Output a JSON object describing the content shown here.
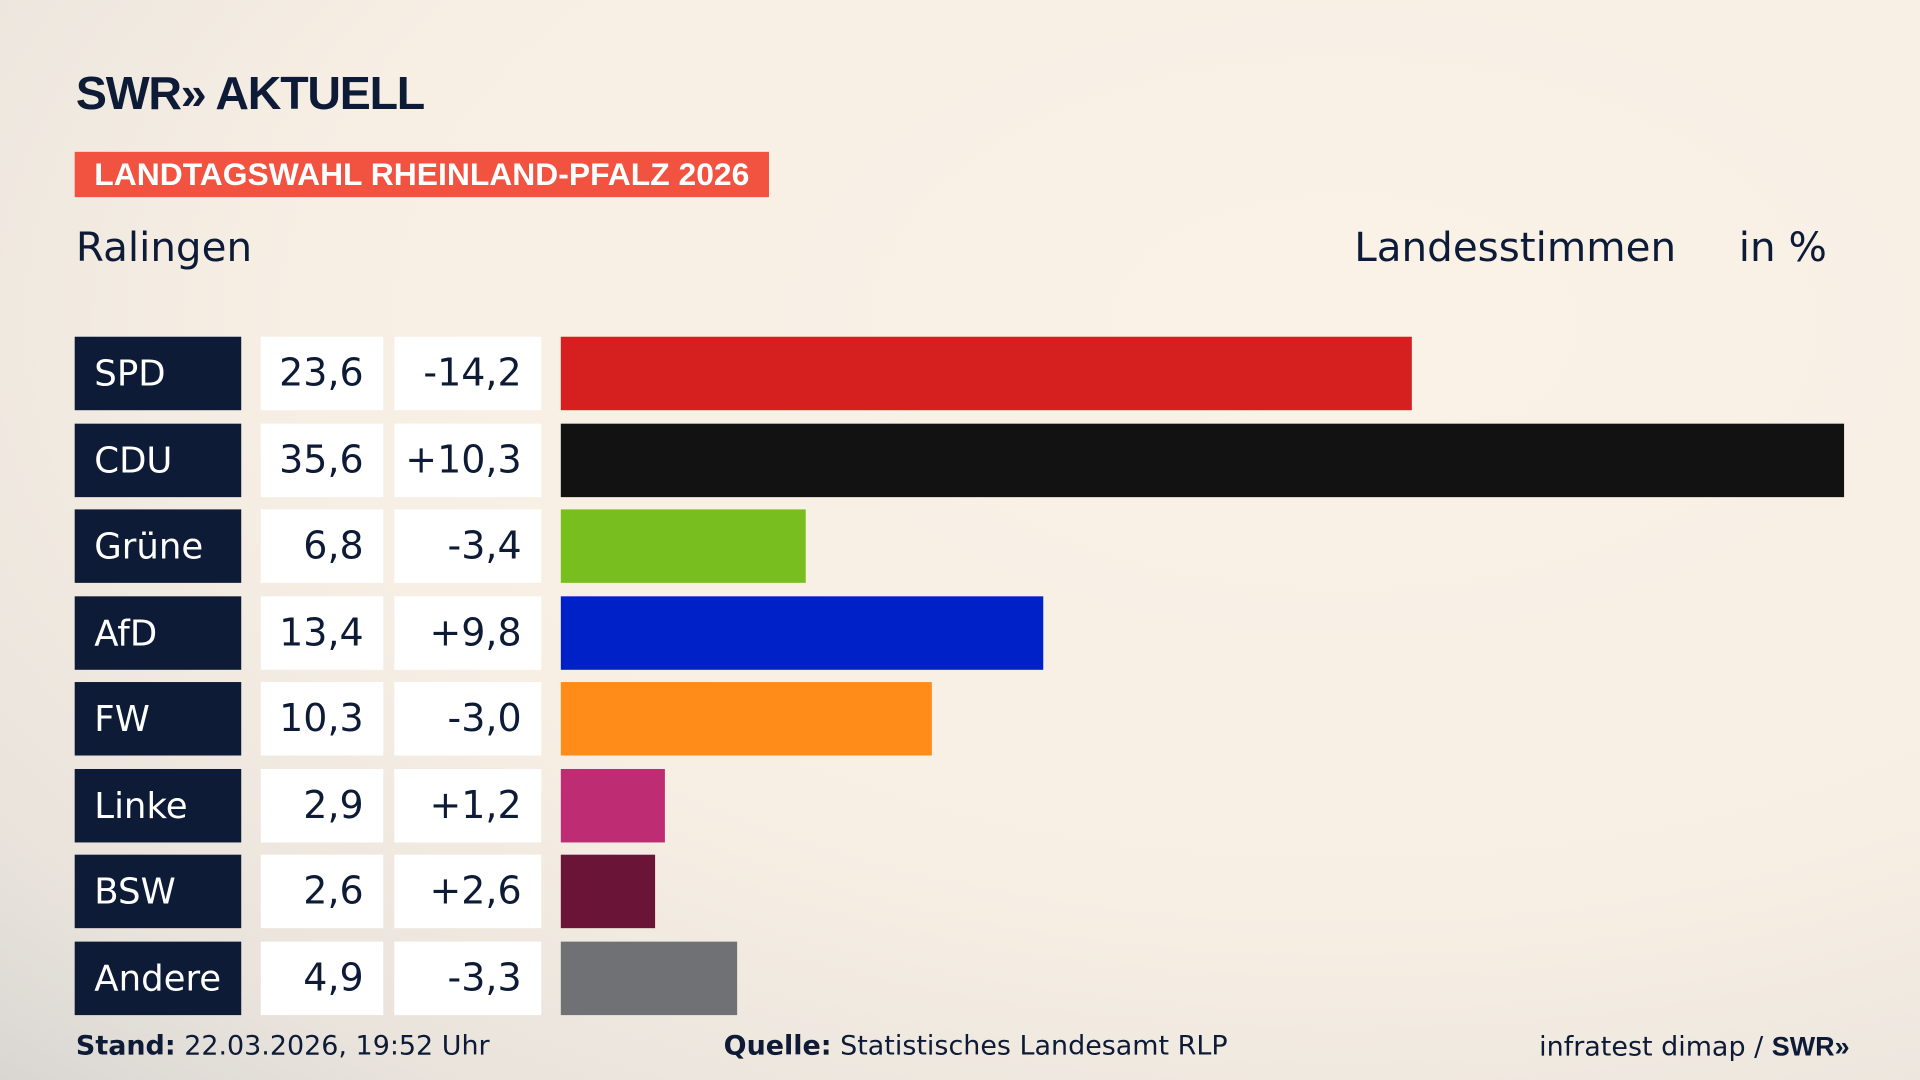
{
  "logo": "SWR» AKTUELL",
  "banner": "LANDTAGSWAHL RHEINLAND-PFALZ 2026",
  "place": "Ralingen",
  "header_measure": "Landesstimmen",
  "header_unit": "in %",
  "footer": {
    "stand_label": "Stand:",
    "stand_value": "22.03.2026, 19:52 Uhr",
    "quelle_label": "Quelle:",
    "quelle_value": "Statistisches Landesamt RLP",
    "credit": "infratest dimap / ",
    "credit_logo": "SWR»"
  },
  "chart_data": {
    "type": "bar",
    "orientation": "horizontal",
    "xlim": [
      0,
      35.6
    ],
    "categories": [
      "SPD",
      "CDU",
      "Grüne",
      "AfD",
      "FW",
      "Linke",
      "BSW",
      "Andere"
    ],
    "values": [
      23.6,
      35.6,
      6.8,
      13.4,
      10.3,
      2.9,
      2.6,
      4.9
    ],
    "value_labels": [
      "23,6",
      "35,6",
      "6,8",
      "13,4",
      "10,3",
      "2,9",
      "2,6",
      "4,9"
    ],
    "diff_labels": [
      "-14,2",
      "+10,3",
      "-3,4",
      "+9,8",
      "-3,0",
      "+1,2",
      "+2,6",
      "-3,3"
    ],
    "colors": [
      "#d62020",
      "#121212",
      "#78be1e",
      "#0020c8",
      "#ff8c19",
      "#be2d73",
      "#6a1538",
      "#707174"
    ]
  }
}
